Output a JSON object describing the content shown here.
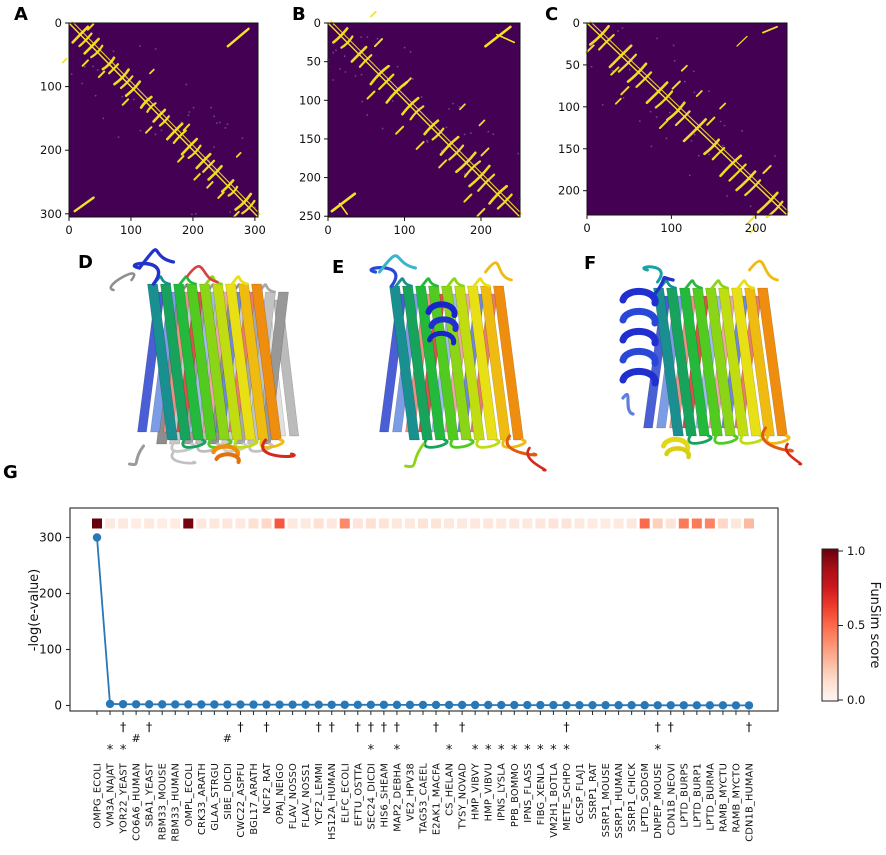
{
  "panel_labels": [
    "A",
    "B",
    "C",
    "D",
    "E",
    "F",
    "G"
  ],
  "contact_maps": [
    {
      "id": "A",
      "x_ticks": [
        0,
        100,
        200,
        300
      ],
      "y_ticks": [
        0,
        100,
        200,
        300
      ],
      "x_range": [
        0,
        305
      ],
      "y_range": [
        0,
        305
      ]
    },
    {
      "id": "B",
      "x_ticks": [
        0,
        100,
        200
      ],
      "y_ticks": [
        0,
        50,
        100,
        150,
        200,
        250
      ],
      "x_range": [
        0,
        251
      ],
      "y_range": [
        0,
        251
      ]
    },
    {
      "id": "C",
      "x_ticks": [
        0,
        100,
        200
      ],
      "y_ticks": [
        0,
        50,
        100,
        150,
        200
      ],
      "x_range": [
        0,
        237
      ],
      "y_range": [
        0,
        229
      ]
    }
  ],
  "contact_colors": {
    "background": "#440154",
    "contacts": "#f3e225",
    "speckle": "#7b8db8"
  },
  "structures": [
    {
      "id": "D",
      "style": "superposition of gray and rainbow beta-barrel"
    },
    {
      "id": "E",
      "style": "rainbow beta-barrel"
    },
    {
      "id": "F",
      "style": "rainbow beta-barrel with N-terminal blue helix"
    }
  ],
  "chart_data": {
    "type": "line",
    "title": "",
    "xlabel": "",
    "ylabel": "-log(e-value)",
    "y_ticks": [
      0,
      100,
      200,
      300
    ],
    "ylim": [
      -8,
      352
    ],
    "grid": false,
    "legend": "none",
    "line_color": "#2878b7",
    "categories": [
      "OMPG_ECOLI",
      "VM3A_NAJAT",
      "YOR22_YEAST",
      "CO6A6_HUMAN",
      "SBA1_YEAST",
      "RBM33_MOUSE",
      "RBM33_HUMAN",
      "OMPL_ECOLI",
      "CRK33_ARATH",
      "GLAA_STRGU",
      "SIBE_DICDI",
      "CWC22_ASPFU",
      "BGL17_ARATH",
      "NCF2_RAT",
      "OPAJ_NEIGO",
      "FLAV_NOSSO",
      "FLAV_NOSS1",
      "YCF2_LEMMI",
      "HS12A_HUMAN",
      "ELFC_ECOLI",
      "EFTU_OSTTA",
      "SEC24_DICDI",
      "HIS6_SHEAM",
      "MAP2_DEBHA",
      "VE2_HPV38",
      "TAG53_CAEEL",
      "E2AK1_MACFA",
      "CS_HELAN",
      "TYSY_NOVAD",
      "HMP_VIBVY",
      "HMP_VIBVU",
      "IPNS_LYSLA",
      "PPB_BOMMO",
      "IPNS_FLASS",
      "FIBG_XENLA",
      "VM2H1_BOTLA",
      "METE_SCHPO",
      "GCSP_FLAJ1",
      "SSRP1_RAT",
      "SSRP1_MOUSE",
      "SSRP1_HUMAN",
      "SSRP1_CHICK",
      "LPTD_SODGM",
      "DNPEP_MOUSE",
      "CDN1B_NEOVI",
      "LPTD_BURPS",
      "LPTD_BURP1",
      "LPTD_BURMA",
      "RAMB_MYCTU",
      "RAMB_MYCTO",
      "CDN1B_HUMAN"
    ],
    "series": [
      {
        "name": "-log(e-value)",
        "type": "line+marker",
        "values": [
          300,
          2.8,
          2.4,
          2.2,
          2.1,
          2.0,
          1.9,
          1.9,
          1.8,
          1.8,
          1.7,
          1.7,
          1.6,
          1.6,
          1.5,
          1.5,
          1.4,
          1.4,
          1.3,
          1.3,
          1.2,
          1.2,
          1.2,
          1.1,
          1.1,
          1.0,
          1.0,
          1.0,
          0.9,
          0.9,
          0.9,
          0.8,
          0.8,
          0.8,
          0.7,
          0.7,
          0.7,
          0.6,
          0.6,
          0.6,
          0.5,
          0.5,
          0.5,
          0.4,
          0.4,
          0.4,
          0.3,
          0.3,
          0.3,
          0.2,
          0.2
        ]
      },
      {
        "name": "FunSim score",
        "type": "heat-strip",
        "colormap": "Reds",
        "values": [
          1.0,
          0.07,
          0.07,
          0.05,
          0.07,
          0.05,
          0.06,
          0.97,
          0.08,
          0.08,
          0.09,
          0.07,
          0.12,
          0.15,
          0.55,
          0.07,
          0.07,
          0.12,
          0.08,
          0.4,
          0.1,
          0.12,
          0.1,
          0.08,
          0.07,
          0.1,
          0.1,
          0.08,
          0.07,
          0.08,
          0.09,
          0.07,
          0.08,
          0.07,
          0.09,
          0.1,
          0.1,
          0.07,
          0.06,
          0.06,
          0.07,
          0.08,
          0.5,
          0.18,
          0.1,
          0.45,
          0.45,
          0.42,
          0.15,
          0.08,
          0.25
        ]
      }
    ],
    "category_symbols": [
      "",
      "*",
      "†*",
      "#",
      "†",
      "",
      "",
      "",
      "",
      "",
      "#",
      "†",
      "",
      "†",
      "",
      "",
      "",
      "†",
      "†",
      "",
      "†",
      "†*",
      "†",
      "†*",
      "",
      "",
      "†",
      "*",
      "†",
      "*",
      "*",
      "*",
      "*",
      "*",
      "*",
      "*",
      "†*",
      "",
      "",
      "",
      "",
      "",
      "",
      "†*",
      "†",
      "",
      "",
      "",
      "",
      "",
      "†"
    ],
    "colorbar": {
      "label": "FunSim score",
      "ticks": [
        "1.0",
        "0.5",
        "0.0"
      ],
      "colormap": "Reds"
    }
  }
}
